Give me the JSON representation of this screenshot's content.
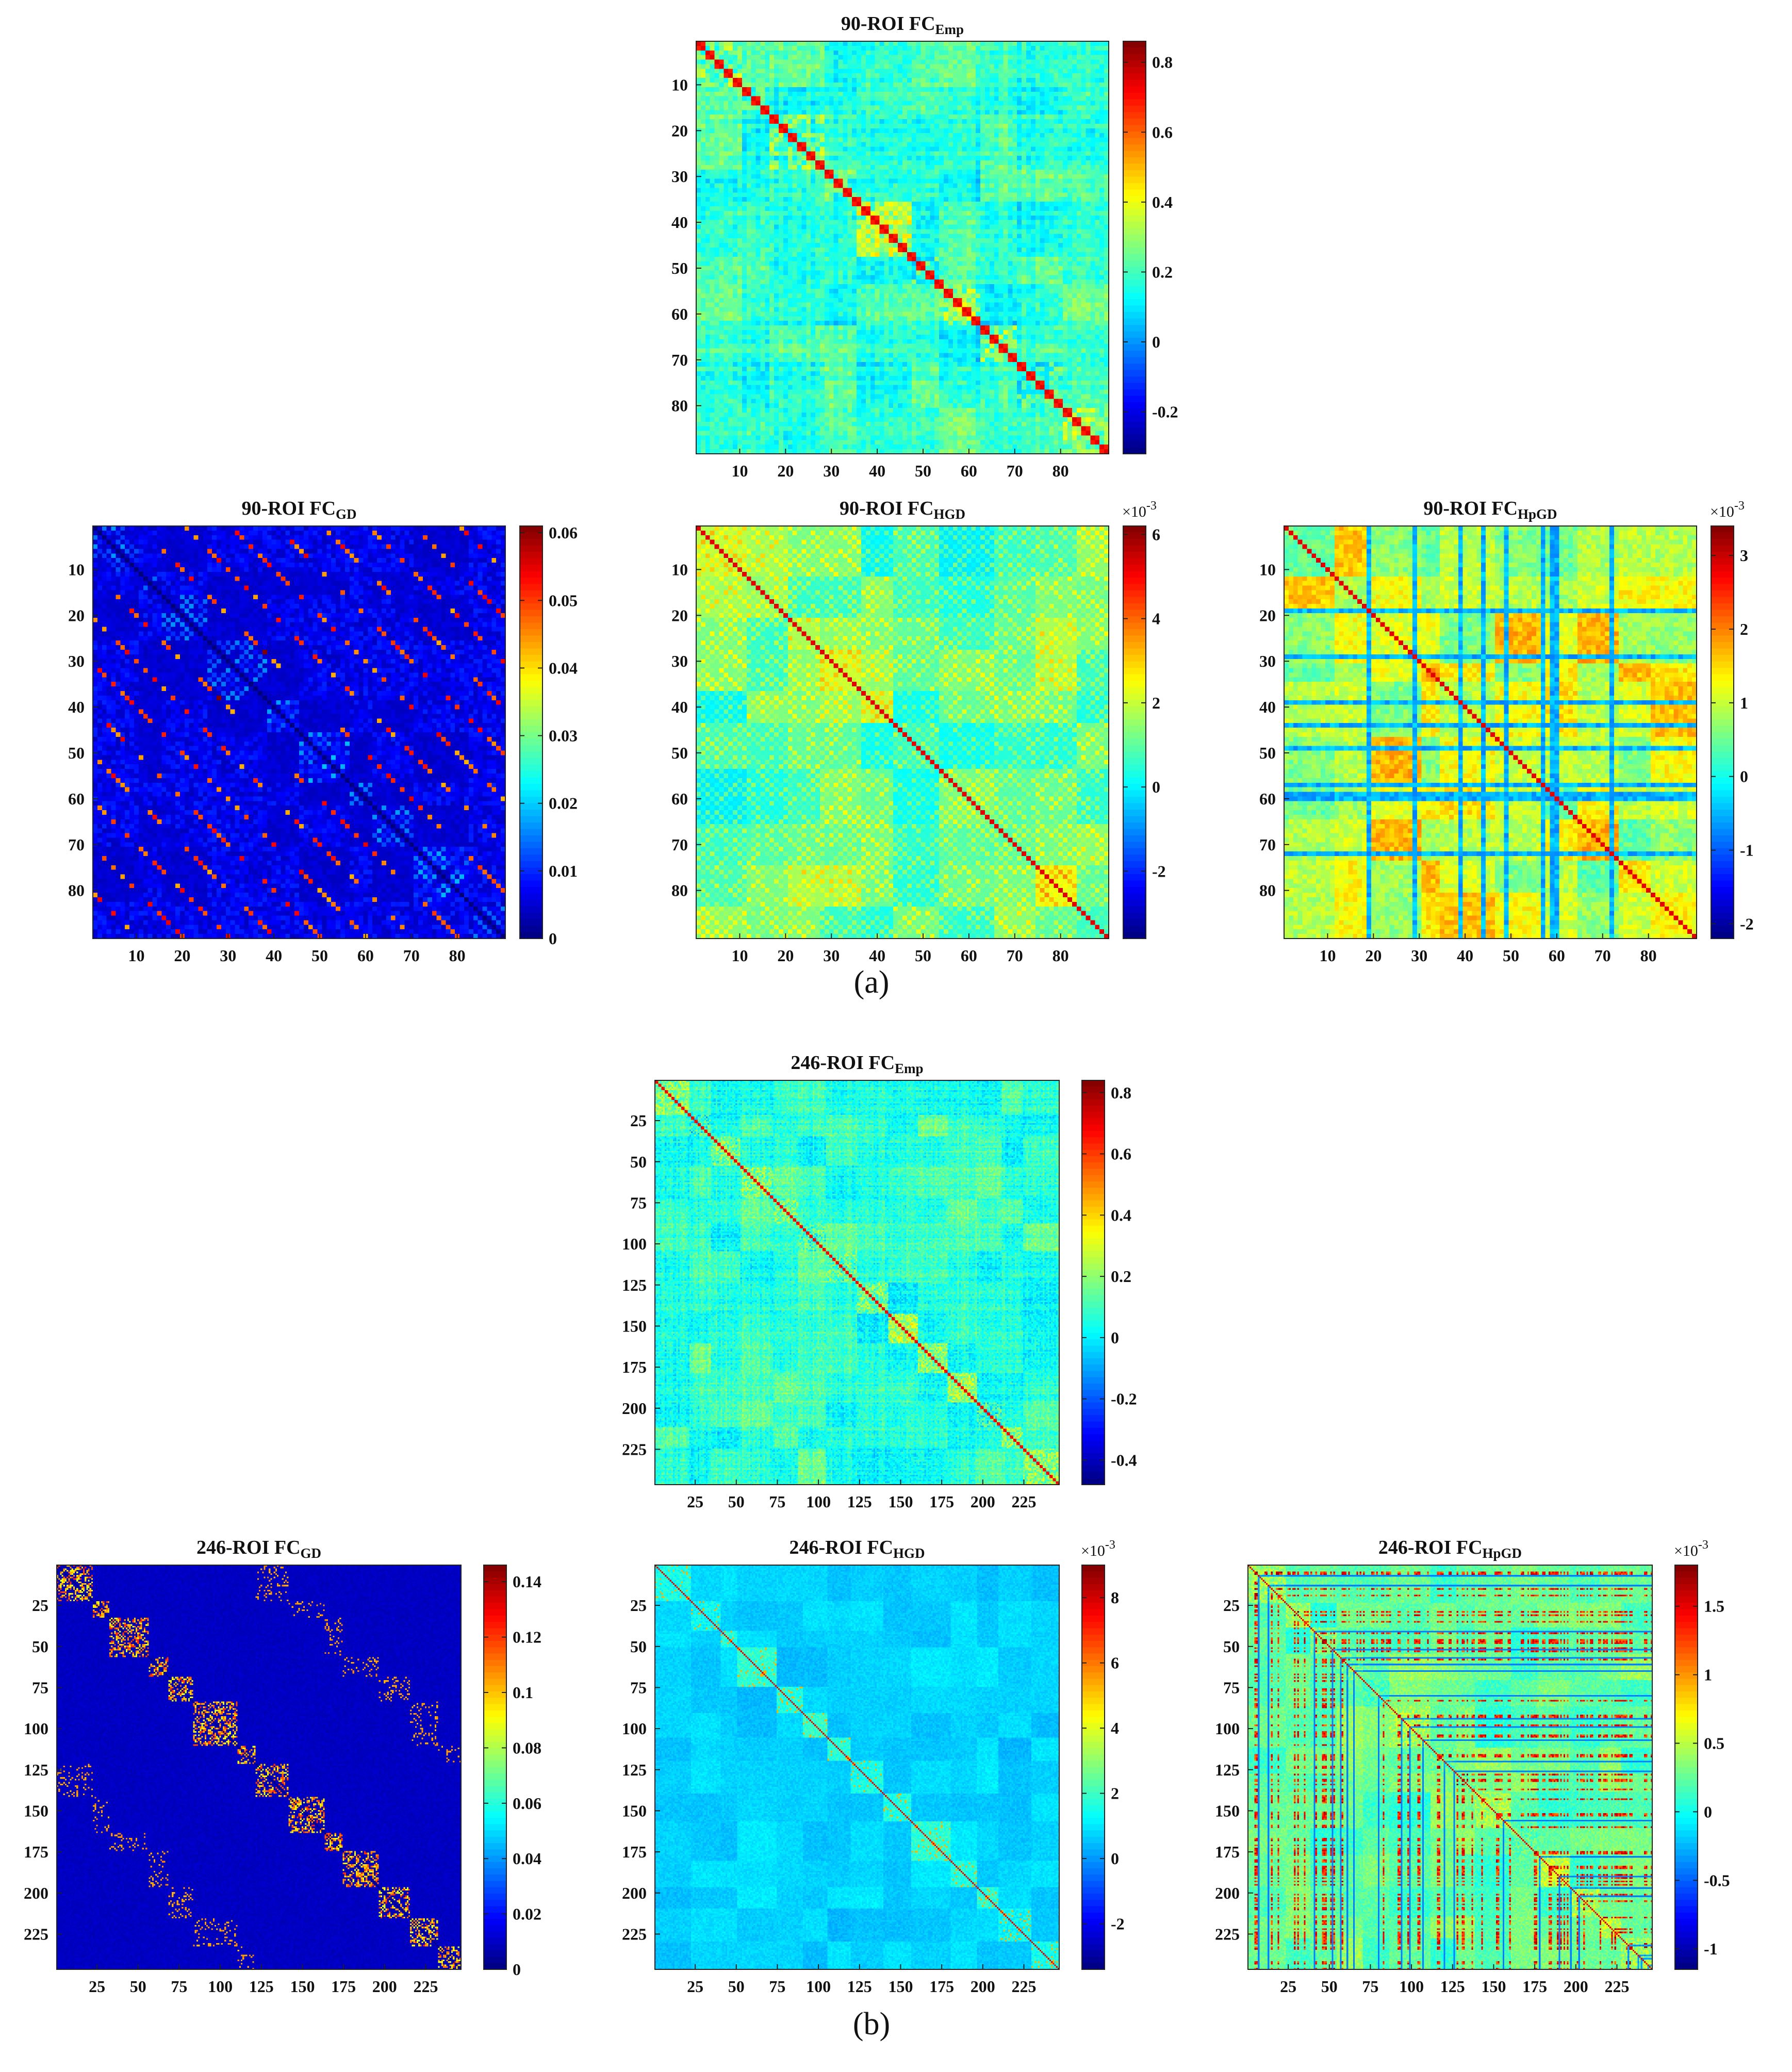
{
  "colors": {
    "jet": [
      "#00007f",
      "#0000ff",
      "#007fff",
      "#00ffff",
      "#7fff7f",
      "#ffff00",
      "#ff7f00",
      "#ff0000",
      "#7f0000"
    ]
  },
  "labels": {
    "a": "(a)",
    "b": "(b)"
  },
  "chart_data": [
    {
      "type": "heatmap",
      "id": "p90emp",
      "n": 90,
      "pattern": "emp",
      "title_main": "90-ROI FC",
      "title_sub": "Emp",
      "xticks": [
        "10",
        "20",
        "30",
        "40",
        "50",
        "60",
        "70",
        "80"
      ],
      "xtick_values": [
        10,
        20,
        30,
        40,
        50,
        60,
        70,
        80
      ],
      "yticks": [
        "10",
        "20",
        "30",
        "40",
        "50",
        "60",
        "70",
        "80"
      ],
      "ytick_values": [
        10,
        20,
        30,
        40,
        50,
        60,
        70,
        80
      ],
      "clim": [
        -0.32,
        0.86
      ],
      "multiplier": "",
      "cbar_ticks": [
        "-0.2",
        "0",
        "0.2",
        "0.4",
        "0.6",
        "0.8"
      ],
      "cbar_tick_values": [
        -0.2,
        0,
        0.2,
        0.4,
        0.6,
        0.8
      ]
    },
    {
      "type": "heatmap",
      "id": "p90gd",
      "n": 90,
      "pattern": "gd",
      "title_main": "90-ROI FC",
      "title_sub": "GD",
      "xticks": [
        "10",
        "20",
        "30",
        "40",
        "50",
        "60",
        "70",
        "80"
      ],
      "xtick_values": [
        10,
        20,
        30,
        40,
        50,
        60,
        70,
        80
      ],
      "yticks": [
        "10",
        "20",
        "30",
        "40",
        "50",
        "60",
        "70",
        "80"
      ],
      "ytick_values": [
        10,
        20,
        30,
        40,
        50,
        60,
        70,
        80
      ],
      "clim": [
        0,
        0.061
      ],
      "multiplier": "",
      "cbar_ticks": [
        "0",
        "0.01",
        "0.02",
        "0.03",
        "0.04",
        "0.05",
        "0.06"
      ],
      "cbar_tick_values": [
        0,
        0.01,
        0.02,
        0.03,
        0.04,
        0.05,
        0.06
      ]
    },
    {
      "type": "heatmap",
      "id": "p90hgd",
      "n": 90,
      "pattern": "hgd",
      "title_main": "90-ROI FC",
      "title_sub": "HGD",
      "xticks": [
        "10",
        "20",
        "30",
        "40",
        "50",
        "60",
        "70",
        "80"
      ],
      "xtick_values": [
        10,
        20,
        30,
        40,
        50,
        60,
        70,
        80
      ],
      "yticks": [
        "10",
        "20",
        "30",
        "40",
        "50",
        "60",
        "70",
        "80"
      ],
      "ytick_values": [
        10,
        20,
        30,
        40,
        50,
        60,
        70,
        80
      ],
      "clim": [
        -3.6,
        6.2
      ],
      "multiplier": "×10",
      "multiplier_exp": "-3",
      "cbar_ticks": [
        "-2",
        "0",
        "2",
        "4",
        "6"
      ],
      "cbar_tick_values": [
        -2,
        0,
        2,
        4,
        6
      ]
    },
    {
      "type": "heatmap",
      "id": "p90hpgd",
      "n": 90,
      "pattern": "hpgd",
      "title_main": "90-ROI FC",
      "title_sub": "HpGD",
      "xticks": [
        "10",
        "20",
        "30",
        "40",
        "50",
        "60",
        "70",
        "80"
      ],
      "xtick_values": [
        10,
        20,
        30,
        40,
        50,
        60,
        70,
        80
      ],
      "yticks": [
        "10",
        "20",
        "30",
        "40",
        "50",
        "60",
        "70",
        "80"
      ],
      "ytick_values": [
        10,
        20,
        30,
        40,
        50,
        60,
        70,
        80
      ],
      "clim": [
        -2.2,
        3.4
      ],
      "multiplier": "×10",
      "multiplier_exp": "-3",
      "cbar_ticks": [
        "-2",
        "-1",
        "0",
        "1",
        "2",
        "3"
      ],
      "cbar_tick_values": [
        -2,
        -1,
        0,
        1,
        2,
        3
      ]
    },
    {
      "type": "heatmap",
      "id": "p246emp",
      "n": 246,
      "pattern": "emp",
      "title_main": "246-ROI FC",
      "title_sub": "Emp",
      "xticks": [
        "25",
        "50",
        "75",
        "100",
        "125",
        "150",
        "175",
        "200",
        "225"
      ],
      "xtick_values": [
        25,
        50,
        75,
        100,
        125,
        150,
        175,
        200,
        225
      ],
      "yticks": [
        "25",
        "50",
        "75",
        "100",
        "125",
        "150",
        "175",
        "200",
        "225"
      ],
      "ytick_values": [
        25,
        50,
        75,
        100,
        125,
        150,
        175,
        200,
        225
      ],
      "clim": [
        -0.48,
        0.84
      ],
      "multiplier": "",
      "cbar_ticks": [
        "-0.4",
        "-0.2",
        "0",
        "0.2",
        "0.4",
        "0.6",
        "0.8"
      ],
      "cbar_tick_values": [
        -0.4,
        -0.2,
        0,
        0.2,
        0.4,
        0.6,
        0.8
      ]
    },
    {
      "type": "heatmap",
      "id": "p246gd",
      "n": 246,
      "pattern": "gd246",
      "title_main": "246-ROI FC",
      "title_sub": "GD",
      "xticks": [
        "25",
        "50",
        "75",
        "100",
        "125",
        "150",
        "175",
        "200",
        "225"
      ],
      "xtick_values": [
        25,
        50,
        75,
        100,
        125,
        150,
        175,
        200,
        225
      ],
      "yticks": [
        "25",
        "50",
        "75",
        "100",
        "125",
        "150",
        "175",
        "200",
        "225"
      ],
      "ytick_values": [
        25,
        50,
        75,
        100,
        125,
        150,
        175,
        200,
        225
      ],
      "clim": [
        0,
        0.146
      ],
      "multiplier": "",
      "cbar_ticks": [
        "0",
        "0.02",
        "0.04",
        "0.06",
        "0.08",
        "0.1",
        "0.12",
        "0.14"
      ],
      "cbar_tick_values": [
        0,
        0.02,
        0.04,
        0.06,
        0.08,
        0.1,
        0.12,
        0.14
      ]
    },
    {
      "type": "heatmap",
      "id": "p246hgd",
      "n": 246,
      "pattern": "hgd246",
      "title_main": "246-ROI FC",
      "title_sub": "HGD",
      "xticks": [
        "25",
        "50",
        "75",
        "100",
        "125",
        "150",
        "175",
        "200",
        "225"
      ],
      "xtick_values": [
        25,
        50,
        75,
        100,
        125,
        150,
        175,
        200,
        225
      ],
      "yticks": [
        "25",
        "50",
        "75",
        "100",
        "125",
        "150",
        "175",
        "200",
        "225"
      ],
      "ytick_values": [
        25,
        50,
        75,
        100,
        125,
        150,
        175,
        200,
        225
      ],
      "clim": [
        -3.4,
        9.0
      ],
      "multiplier": "×10",
      "multiplier_exp": "-3",
      "cbar_ticks": [
        "-2",
        "0",
        "2",
        "4",
        "6",
        "8"
      ],
      "cbar_tick_values": [
        -2,
        0,
        2,
        4,
        6,
        8
      ]
    },
    {
      "type": "heatmap",
      "id": "p246hpgd",
      "n": 246,
      "pattern": "hpgd246",
      "title_main": "246-ROI FC",
      "title_sub": "HpGD",
      "xticks": [
        "25",
        "50",
        "75",
        "100",
        "125",
        "150",
        "175",
        "200",
        "225"
      ],
      "xtick_values": [
        25,
        50,
        75,
        100,
        125,
        150,
        175,
        200,
        225
      ],
      "yticks": [
        "25",
        "50",
        "75",
        "100",
        "125",
        "150",
        "175",
        "200",
        "225"
      ],
      "ytick_values": [
        25,
        50,
        75,
        100,
        125,
        150,
        175,
        200,
        225
      ],
      "clim": [
        -1.15,
        1.8
      ],
      "multiplier": "×10",
      "multiplier_exp": "-3",
      "cbar_ticks": [
        "-1",
        "-0.5",
        "0",
        "0.5",
        "1",
        "1.5"
      ],
      "cbar_tick_values": [
        -1,
        -0.5,
        0,
        0.5,
        1,
        1.5
      ]
    }
  ]
}
